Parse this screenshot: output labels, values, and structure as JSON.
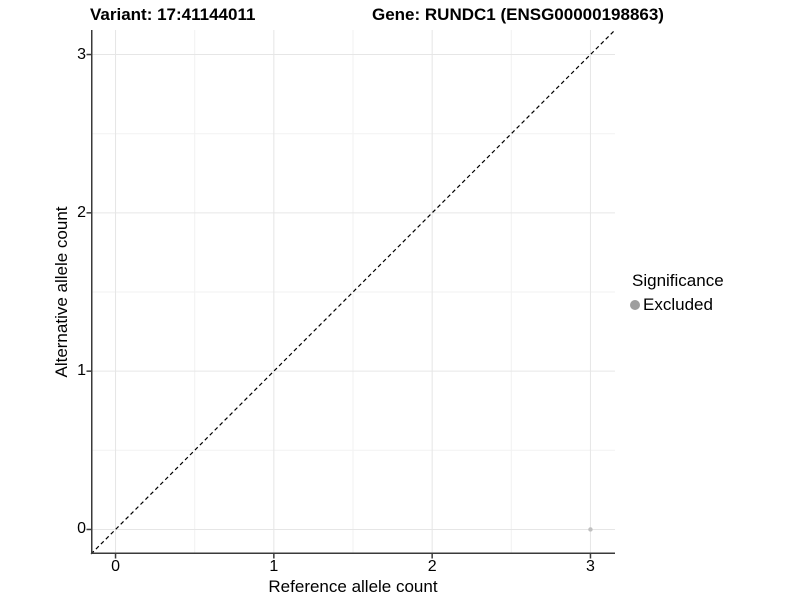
{
  "titles": {
    "variant": "Variant: 17:41144011",
    "gene": "Gene: RUNDC1 (ENSG00000198863)"
  },
  "legend": {
    "title": "Significance",
    "items": [
      {
        "label": "Excluded",
        "color": "#9e9e9e"
      }
    ]
  },
  "colors": {
    "grid_major": "#e6e6e6",
    "grid_minor": "#f2f2f2",
    "axis_line": "#3a3a3a",
    "reference_line": "#000000",
    "text": "#000000"
  },
  "chart_data": {
    "type": "scatter",
    "title": "Variant: 17:41144011   Gene: RUNDC1 (ENSG00000198863)",
    "xlabel": "Reference allele count",
    "ylabel": "Alternative allele count",
    "xlim": [
      -0.155,
      3.155
    ],
    "ylim": [
      -0.155,
      3.155
    ],
    "x_ticks": [
      0,
      1,
      2,
      3
    ],
    "y_ticks": [
      0,
      1,
      2,
      3
    ],
    "x_minor_ticks": [
      0.5,
      1.5,
      2.5
    ],
    "y_minor_ticks": [
      0.5,
      1.5,
      2.5
    ],
    "grid": true,
    "legend_position": "right",
    "series": [
      {
        "name": "Excluded",
        "color": "#c0c0c0",
        "points": [
          {
            "x": 3,
            "y": 0
          }
        ]
      }
    ],
    "reference_line": {
      "type": "identity",
      "slope": 1,
      "intercept": 0,
      "style": "dashed"
    }
  }
}
